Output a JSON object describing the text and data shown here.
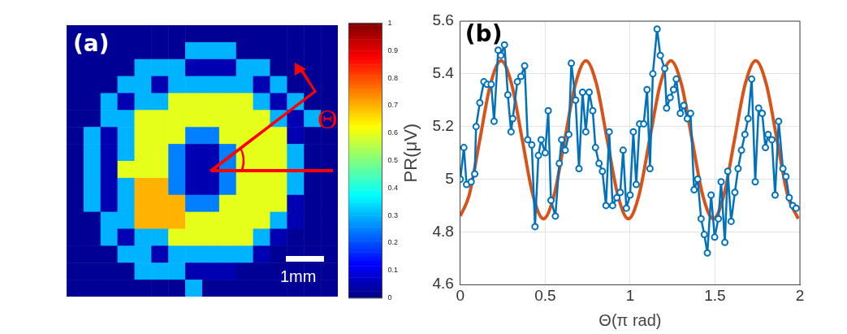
{
  "chart_data": [
    {
      "type": "heatmap",
      "tick_labels": false,
      "clim": [
        0,
        1
      ],
      "cticks": [
        0,
        0.1,
        0.2,
        0.3,
        0.4,
        0.5,
        0.6,
        0.7,
        0.8,
        0.9,
        1
      ],
      "annotations": [
        "(a)",
        "Θ",
        "1mm"
      ],
      "categories": [
        null,
        null,
        null,
        null,
        null,
        null,
        null,
        null,
        null,
        null,
        null,
        null,
        null,
        null,
        null,
        null
      ],
      "y_categories": [
        null,
        null,
        null,
        null,
        null,
        null,
        null,
        null,
        null,
        null,
        null,
        null,
        null,
        null,
        null,
        null
      ],
      "cells": [
        [
          0.02,
          0.02,
          0.02,
          0.02,
          0.02,
          0.02,
          0.02,
          0.02,
          0.02,
          0.02,
          0.02,
          0.02,
          0.02,
          0.02,
          0.02,
          0.02
        ],
        [
          0.02,
          0.02,
          0.02,
          0.02,
          0.02,
          0.02,
          0.02,
          0.3,
          0.3,
          0.3,
          0.02,
          0.02,
          0.02,
          0.02,
          0.02,
          0.02
        ],
        [
          0.02,
          0.02,
          0.02,
          0.02,
          0.3,
          0.3,
          0.3,
          0.05,
          0.05,
          0.05,
          0.3,
          0.3,
          0.02,
          0.02,
          0.02,
          0.02
        ],
        [
          0.02,
          0.02,
          0.02,
          0.3,
          0.3,
          0.05,
          0.3,
          0.3,
          0.3,
          0.3,
          0.3,
          0.05,
          0.3,
          0.02,
          0.02,
          0.02
        ],
        [
          0.02,
          0.02,
          0.3,
          0.05,
          0.3,
          0.3,
          0.6,
          0.6,
          0.6,
          0.6,
          0.6,
          0.3,
          0.05,
          0.3,
          0.02,
          0.02
        ],
        [
          0.02,
          0.02,
          0.3,
          0.3,
          0.6,
          0.6,
          0.6,
          0.6,
          0.6,
          0.6,
          0.6,
          0.6,
          0.3,
          0.05,
          0.3,
          0.02
        ],
        [
          0.02,
          0.3,
          0.05,
          0.3,
          0.6,
          0.6,
          0.6,
          0.25,
          0.25,
          0.6,
          0.6,
          0.6,
          0.6,
          0.05,
          0.02,
          0.02
        ],
        [
          0.02,
          0.3,
          0.05,
          0.3,
          0.6,
          0.6,
          0.25,
          0.05,
          0.05,
          0.25,
          0.6,
          0.6,
          0.6,
          0.3,
          0.02,
          0.02
        ],
        [
          0.02,
          0.3,
          0.05,
          0.6,
          0.6,
          0.6,
          0.25,
          0.05,
          0.05,
          0.25,
          0.6,
          0.6,
          0.6,
          0.3,
          0.02,
          0.02
        ],
        [
          0.02,
          0.3,
          0.05,
          0.3,
          0.7,
          0.7,
          0.25,
          0.05,
          0.05,
          0.25,
          0.6,
          0.6,
          0.6,
          0.3,
          0.02,
          0.02
        ],
        [
          0.02,
          0.3,
          0.05,
          0.3,
          0.7,
          0.7,
          0.7,
          0.25,
          0.25,
          0.6,
          0.6,
          0.6,
          0.6,
          0.05,
          0.02,
          0.02
        ],
        [
          0.02,
          0.02,
          0.3,
          0.3,
          0.7,
          0.7,
          0.7,
          0.6,
          0.6,
          0.6,
          0.6,
          0.6,
          0.3,
          0.05,
          0.02,
          0.02
        ],
        [
          0.02,
          0.02,
          0.3,
          0.05,
          0.3,
          0.3,
          0.6,
          0.6,
          0.6,
          0.6,
          0.6,
          0.3,
          0.05,
          0.02,
          0.02,
          0.02
        ],
        [
          0.02,
          0.02,
          0.02,
          0.3,
          0.3,
          0.05,
          0.3,
          0.3,
          0.3,
          0.3,
          0.3,
          0.05,
          0.02,
          0.02,
          0.02,
          0.02
        ],
        [
          0.02,
          0.02,
          0.02,
          0.02,
          0.3,
          0.3,
          0.3,
          0.05,
          0.05,
          0.05,
          0.02,
          0.02,
          0.02,
          0.02,
          0.02,
          0.02
        ],
        [
          0.02,
          0.02,
          0.02,
          0.02,
          0.02,
          0.02,
          0.02,
          0.3,
          0.02,
          0.02,
          0.02,
          0.02,
          0.02,
          0.02,
          0.02,
          0.02
        ]
      ]
    },
    {
      "type": "line",
      "xlabel": "Θ(π rad)",
      "ylabel": "PR(μV)",
      "annotations": [
        "(b)"
      ],
      "grid": true,
      "xlim": [
        0,
        2
      ],
      "xticks": [
        0,
        0.5,
        1,
        1.5,
        2
      ],
      "ylim": [
        4.6,
        5.6
      ],
      "yticks": [
        4.6,
        4.8,
        5,
        5.2,
        5.4,
        5.6
      ],
      "series": [
        {
          "color": "#0072bd",
          "marker": "circle",
          "x": [
            0,
            0.021,
            0.037,
            0.064,
            0.085,
            0.093,
            0.115,
            0.139,
            0.158,
            0.182,
            0.199,
            0.223,
            0.239,
            0.26,
            0.28,
            0.299,
            0.309,
            0.336,
            0.357,
            0.379,
            0.397,
            0.421,
            0.44,
            0.46,
            0.476,
            0.5,
            0.518,
            0.534,
            0.56,
            0.583,
            0.597,
            0.618,
            0.639,
            0.654,
            0.679,
            0.699,
            0.72,
            0.739,
            0.759,
            0.78,
            0.796,
            0.817,
            0.837,
            0.858,
            0.877,
            0.897,
            0.922,
            0.942,
            0.959,
            0.978,
            1.0,
            1.019,
            1.036,
            1.056,
            1.08,
            1.1,
            1.117,
            1.134,
            1.159,
            1.178,
            1.204,
            1.215,
            1.236,
            1.256,
            1.272,
            1.296,
            1.316,
            1.337,
            1.356,
            1.377,
            1.398,
            1.418,
            1.437,
            1.455,
            1.477,
            1.498,
            1.52,
            1.536,
            1.558,
            1.575,
            1.595,
            1.617,
            1.636,
            1.656,
            1.676,
            1.695,
            1.716,
            1.737,
            1.757,
            1.778,
            1.797,
            1.813,
            1.835,
            1.854,
            1.875,
            1.9,
            1.918,
            1.937,
            1.958,
            1.978
          ],
          "values": [
            5.0,
            5.12,
            4.98,
            4.99,
            5.02,
            5.2,
            5.29,
            5.37,
            5.36,
            5.36,
            5.22,
            5.49,
            5.47,
            5.51,
            5.32,
            5.18,
            5.23,
            5.37,
            5.39,
            5.43,
            5.15,
            5.13,
            4.82,
            5.09,
            5.15,
            5.1,
            5.26,
            4.92,
            4.86,
            5.06,
            5.15,
            5.11,
            5.17,
            5.44,
            5.3,
            5.04,
            5.33,
            5.18,
            5.33,
            5.26,
            5.12,
            5.06,
            5.03,
            4.9,
            5.18,
            4.9,
            4.93,
            4.95,
            5.11,
            4.89,
            4.94,
            5.18,
            4.98,
            5.21,
            5.21,
            5.34,
            5.04,
            5.4,
            5.57,
            5.47,
            5.42,
            5.27,
            5.31,
            5.34,
            5.38,
            5.25,
            5.28,
            5.23,
            5.25,
            4.96,
            5.0,
            4.85,
            4.79,
            4.72,
            4.94,
            4.78,
            4.85,
            4.99,
            4.76,
            5.03,
            4.84,
            4.95,
            5.04,
            5.11,
            5.17,
            5.23,
            5.38,
            4.99,
            5.27,
            5.25,
            5.12,
            5.17,
            5.15,
            4.94,
            5.22,
            5.04,
            5.01,
            4.93,
            4.9,
            4.89
          ]
        },
        {
          "color": "#d95319",
          "marker": "none",
          "x": [
            0,
            0.0525,
            0.115,
            0.1775,
            0.24,
            0.3025,
            0.365,
            0.4275,
            0.49,
            0.5525,
            0.615,
            0.6775,
            0.74,
            0.8025,
            0.865,
            0.9275,
            0.99,
            1.0525,
            1.115,
            1.1775,
            1.24,
            1.3025,
            1.365,
            1.4275,
            1.49,
            1.5525,
            1.615,
            1.6775,
            1.74,
            1.8025,
            1.865,
            1.9275,
            1.99
          ],
          "values": [
            4.86,
            4.94,
            5.15,
            5.36,
            5.45,
            5.36,
            5.15,
            4.94,
            4.85,
            4.94,
            5.15,
            5.36,
            5.45,
            5.36,
            5.15,
            4.94,
            4.85,
            4.94,
            5.15,
            5.36,
            5.45,
            5.36,
            5.15,
            4.94,
            4.85,
            4.94,
            5.15,
            5.36,
            5.45,
            5.36,
            5.15,
            4.94,
            4.85
          ]
        }
      ]
    }
  ]
}
